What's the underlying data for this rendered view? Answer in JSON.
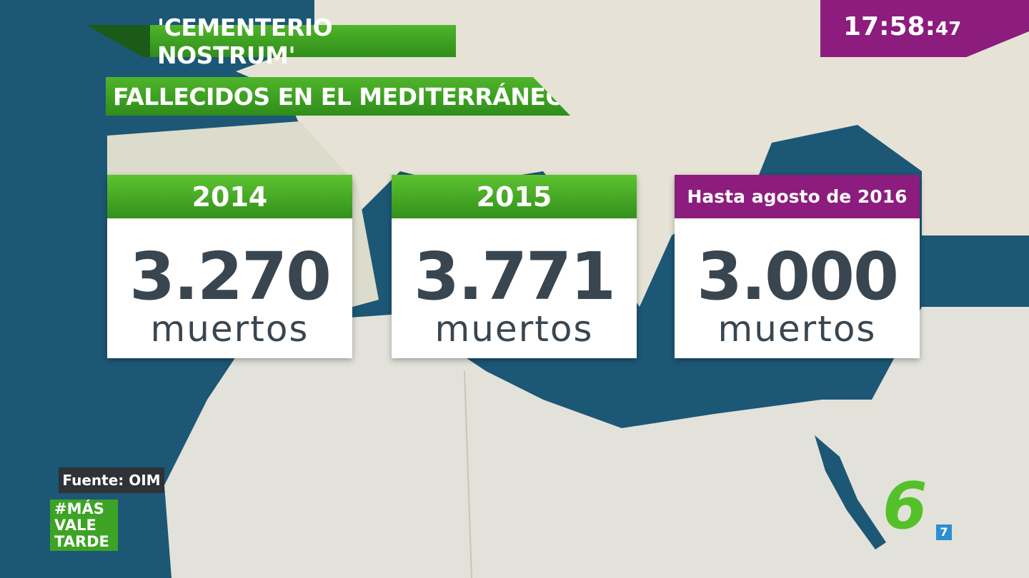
{
  "header": {
    "title": "'CEMENTERIO NOSTRUM'",
    "subtitle": "FALLECIDOS EN EL MEDITERRÁNEO"
  },
  "clock": {
    "time": "17:58:",
    "seconds": "47"
  },
  "cards": [
    {
      "label": "2014",
      "value": "3.270",
      "unit": "muertos"
    },
    {
      "label": "2015",
      "value": "3.771",
      "unit": "muertos"
    },
    {
      "label": "Hasta agosto de 2016",
      "value": "3.000",
      "unit": "muertos"
    }
  ],
  "source": "Fuente: OIM",
  "hashtag": [
    "#MÁS",
    "VALE",
    "TARDE"
  ],
  "logo": {
    "main": "6",
    "badge": "7"
  }
}
